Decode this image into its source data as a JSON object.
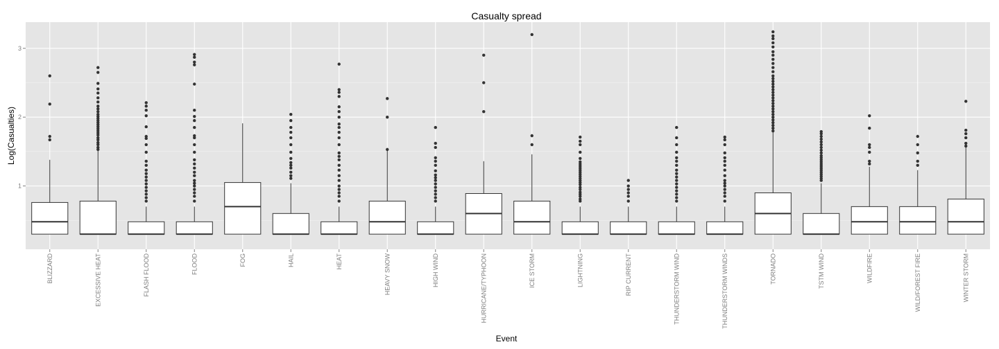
{
  "chart_data": {
    "type": "box",
    "title": "Casualty spread",
    "xlabel": "Event",
    "ylabel": "Log(Casualties)",
    "ylim": [
      0.08,
      3.38
    ],
    "yticks": [
      1,
      2,
      3
    ],
    "grid": true,
    "colors": {
      "panel": "#e5e5e5",
      "grid_major": "#ffffff",
      "grid_minor": "#f2f2f2",
      "box_fill": "#ffffff",
      "box_stroke": "#333333",
      "outlier": "#333333",
      "tick_label": "#7f7f7f"
    },
    "categories": [
      "BLIZZARD",
      "EXCESSIVE HEAT",
      "FLASH FLOOD",
      "FLOOD",
      "FOG",
      "HAIL",
      "HEAT",
      "HEAVY SNOW",
      "HIGH WIND",
      "HURRICANE/TYPHOON",
      "ICE STORM",
      "LIGHTNING",
      "RIP CURRENT",
      "THUNDERSTORM WIND",
      "THUNDERSTORM WINDS",
      "TORNADO",
      "TSTM WIND",
      "WILDFIRE",
      "WILD/FOREST FIRE",
      "WINTER STORM"
    ],
    "boxes": [
      {
        "category": "BLIZZARD",
        "min": 0.3,
        "q1": 0.3,
        "median": 0.48,
        "q3": 0.76,
        "max": 1.38,
        "outliers": [
          1.67,
          1.72,
          2.19,
          2.6
        ]
      },
      {
        "category": "EXCESSIVE HEAT",
        "min": 0.3,
        "q1": 0.3,
        "median": 0.3,
        "q3": 0.78,
        "max": 1.51,
        "outliers": [
          1.53,
          1.56,
          1.6,
          1.63,
          1.67,
          1.7,
          1.74,
          1.77,
          1.8,
          1.83,
          1.86,
          1.89,
          1.92,
          1.95,
          1.98,
          2.01,
          2.04,
          2.08,
          2.12,
          2.16,
          2.22,
          2.28,
          2.35,
          2.41,
          2.49,
          2.65,
          2.72
        ]
      },
      {
        "category": "FLASH FLOOD",
        "min": 0.3,
        "q1": 0.3,
        "median": 0.3,
        "q3": 0.48,
        "max": 0.7,
        "outliers": [
          0.78,
          0.83,
          0.88,
          0.93,
          0.98,
          1.03,
          1.08,
          1.13,
          1.18,
          1.23,
          1.3,
          1.36,
          1.49,
          1.6,
          1.69,
          1.72,
          1.86,
          2.02,
          2.1,
          2.16,
          2.21
        ]
      },
      {
        "category": "FLOOD",
        "min": 0.3,
        "q1": 0.3,
        "median": 0.3,
        "q3": 0.48,
        "max": 0.7,
        "outliers": [
          0.78,
          0.85,
          0.9,
          0.95,
          1.0,
          1.04,
          1.08,
          1.15,
          1.2,
          1.26,
          1.32,
          1.38,
          1.49,
          1.6,
          1.7,
          1.73,
          1.85,
          1.95,
          2.01,
          2.1,
          2.48,
          2.76,
          2.8,
          2.87,
          2.91
        ]
      },
      {
        "category": "FOG",
        "min": 0.3,
        "q1": 0.3,
        "median": 0.7,
        "q3": 1.05,
        "max": 1.91,
        "outliers": []
      },
      {
        "category": "HAIL",
        "min": 0.3,
        "q1": 0.3,
        "median": 0.3,
        "q3": 0.6,
        "max": 1.04,
        "outliers": [
          1.11,
          1.15,
          1.2,
          1.26,
          1.3,
          1.34,
          1.4,
          1.49,
          1.6,
          1.7,
          1.78,
          1.85,
          1.95,
          2.04
        ]
      },
      {
        "category": "HEAT",
        "min": 0.3,
        "q1": 0.3,
        "median": 0.3,
        "q3": 0.48,
        "max": 0.7,
        "outliers": [
          0.78,
          0.85,
          0.9,
          0.95,
          1.0,
          1.08,
          1.15,
          1.23,
          1.3,
          1.38,
          1.43,
          1.48,
          1.6,
          1.7,
          1.78,
          1.85,
          1.9,
          2.0,
          2.08,
          2.15,
          2.3,
          2.36,
          2.4,
          2.77
        ]
      },
      {
        "category": "HEAVY SNOW",
        "min": 0.3,
        "q1": 0.3,
        "median": 0.48,
        "q3": 0.78,
        "max": 1.52,
        "outliers": [
          1.53,
          2.0,
          2.27
        ]
      },
      {
        "category": "HIGH WIND",
        "min": 0.3,
        "q1": 0.3,
        "median": 0.3,
        "q3": 0.48,
        "max": 0.7,
        "outliers": [
          0.78,
          0.83,
          0.88,
          0.93,
          0.98,
          1.03,
          1.08,
          1.12,
          1.16,
          1.22,
          1.3,
          1.36,
          1.41,
          1.56,
          1.62,
          1.85
        ]
      },
      {
        "category": "HURRICANE/TYPHOON",
        "min": 0.3,
        "q1": 0.3,
        "median": 0.6,
        "q3": 0.89,
        "max": 1.36,
        "outliers": [
          2.08,
          2.5,
          2.9
        ]
      },
      {
        "category": "ICE STORM",
        "min": 0.3,
        "q1": 0.3,
        "median": 0.48,
        "q3": 0.78,
        "max": 1.46,
        "outliers": [
          1.6,
          1.73,
          3.2
        ]
      },
      {
        "category": "LIGHTNING",
        "min": 0.3,
        "q1": 0.3,
        "median": 0.3,
        "q3": 0.48,
        "max": 0.7,
        "outliers": [
          0.78,
          0.81,
          0.85,
          0.88,
          0.91,
          0.95,
          0.98,
          1.02,
          1.05,
          1.08,
          1.11,
          1.14,
          1.17,
          1.2,
          1.23,
          1.26,
          1.29,
          1.32,
          1.35,
          1.4,
          1.49,
          1.6,
          1.65,
          1.71
        ]
      },
      {
        "category": "RIP CURRENT",
        "min": 0.3,
        "q1": 0.3,
        "median": 0.3,
        "q3": 0.48,
        "max": 0.7,
        "outliers": [
          0.78,
          0.85,
          0.9,
          0.95,
          1.0,
          1.08
        ]
      },
      {
        "category": "THUNDERSTORM WIND",
        "min": 0.3,
        "q1": 0.3,
        "median": 0.3,
        "q3": 0.48,
        "max": 0.7,
        "outliers": [
          0.78,
          0.83,
          0.88,
          0.93,
          0.98,
          1.03,
          1.08,
          1.13,
          1.18,
          1.23,
          1.3,
          1.36,
          1.41,
          1.49,
          1.6,
          1.7,
          1.85
        ]
      },
      {
        "category": "THUNDERSTORM WINDS",
        "min": 0.3,
        "q1": 0.3,
        "median": 0.3,
        "q3": 0.48,
        "max": 0.7,
        "outliers": [
          0.78,
          0.85,
          0.9,
          0.95,
          1.0,
          1.04,
          1.08,
          1.15,
          1.23,
          1.3,
          1.36,
          1.41,
          1.48,
          1.6,
          1.67,
          1.71
        ]
      },
      {
        "category": "TORNADO",
        "min": 0.3,
        "q1": 0.3,
        "median": 0.6,
        "q3": 0.9,
        "max": 1.79,
        "outliers": [
          1.8,
          1.84,
          1.88,
          1.92,
          1.96,
          2.0,
          2.04,
          2.08,
          2.12,
          2.16,
          2.2,
          2.24,
          2.28,
          2.32,
          2.36,
          2.4,
          2.44,
          2.48,
          2.52,
          2.56,
          2.6,
          2.66,
          2.72,
          2.78,
          2.84,
          2.9,
          2.95,
          3.02,
          3.08,
          3.14,
          3.18,
          3.24
        ]
      },
      {
        "category": "TSTM WIND",
        "min": 0.3,
        "q1": 0.3,
        "median": 0.3,
        "q3": 0.6,
        "max": 1.04,
        "outliers": [
          1.08,
          1.11,
          1.14,
          1.17,
          1.2,
          1.23,
          1.26,
          1.29,
          1.32,
          1.35,
          1.38,
          1.41,
          1.44,
          1.48,
          1.52,
          1.56,
          1.6,
          1.64,
          1.68,
          1.72,
          1.76,
          1.79
        ]
      },
      {
        "category": "WILDFIRE",
        "min": 0.3,
        "q1": 0.3,
        "median": 0.48,
        "q3": 0.7,
        "max": 1.28,
        "outliers": [
          1.32,
          1.36,
          1.49,
          1.56,
          1.6,
          1.84,
          2.02
        ]
      },
      {
        "category": "WILD/FOREST FIRE",
        "min": 0.3,
        "q1": 0.3,
        "median": 0.48,
        "q3": 0.7,
        "max": 1.23,
        "outliers": [
          1.3,
          1.36,
          1.48,
          1.6,
          1.72
        ]
      },
      {
        "category": "WINTER STORM",
        "min": 0.3,
        "q1": 0.3,
        "median": 0.48,
        "q3": 0.81,
        "max": 1.56,
        "outliers": [
          1.58,
          1.62,
          1.7,
          1.76,
          1.81,
          2.23
        ]
      }
    ]
  }
}
